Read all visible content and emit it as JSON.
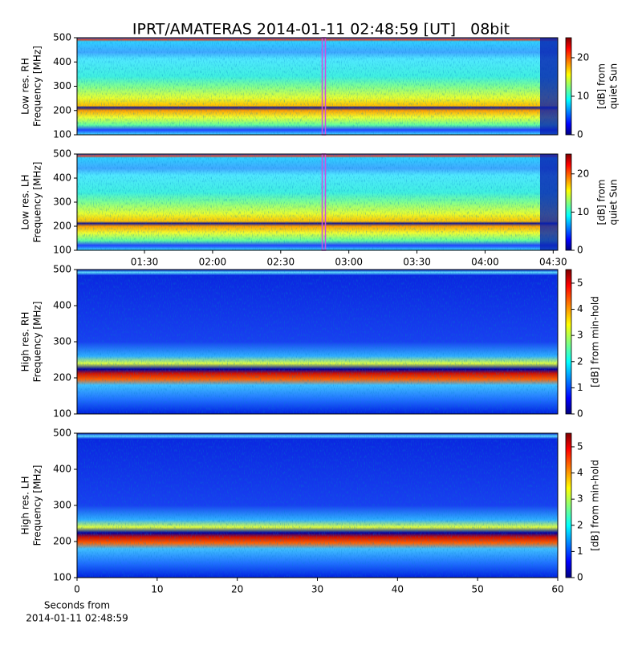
{
  "title": "IPRT/AMATERAS 2014-01-11 02:48:59 [UT]   08bit",
  "chart_data": [
    {
      "type": "heatmap",
      "ylabel": [
        "Low res. RH",
        "Frequency [MHz]"
      ],
      "xlim": [
        60.3,
        272
      ],
      "ylim": [
        100,
        500
      ],
      "yticks": [
        100,
        200,
        300,
        400,
        500
      ],
      "vline": 168.98,
      "vline_color": "#d050e0",
      "colormap": "jet",
      "clim": [
        0,
        25.2
      ],
      "cticks": [
        0,
        10,
        20
      ],
      "clabel": [
        "[dB] from",
        "quiet Sun"
      ]
    },
    {
      "type": "heatmap",
      "ylabel": [
        "Low res. LH",
        "Frequency [MHz]"
      ],
      "xlim": [
        60.3,
        272
      ],
      "ylim": [
        100,
        500
      ],
      "yticks": [
        100,
        200,
        300,
        400,
        500
      ],
      "xticks": [
        {
          "value": 90,
          "label": "01:30"
        },
        {
          "value": 120,
          "label": "02:00"
        },
        {
          "value": 150,
          "label": "02:30"
        },
        {
          "value": 180,
          "label": "03:00"
        },
        {
          "value": 210,
          "label": "03:30"
        },
        {
          "value": 240,
          "label": "04:00"
        },
        {
          "value": 270,
          "label": "04:30"
        }
      ],
      "vline": 168.98,
      "vline_color": "#d050e0",
      "colormap": "jet",
      "clim": [
        0,
        25.2
      ],
      "cticks": [
        0,
        10,
        20
      ],
      "clabel": [
        "[dB] from",
        "quiet Sun"
      ]
    },
    {
      "type": "heatmap",
      "ylabel": [
        "High res. RH",
        "Frequency [MHz]"
      ],
      "xlim": [
        0,
        60
      ],
      "ylim": [
        100,
        500
      ],
      "yticks": [
        100,
        200,
        300,
        400,
        500
      ],
      "colormap": "jet",
      "clim": [
        0,
        5.52
      ],
      "cticks": [
        0,
        1,
        2,
        3,
        4,
        5
      ],
      "clabel": [
        "[dB] from min-hold"
      ]
    },
    {
      "type": "heatmap",
      "ylabel": [
        "High res. LH",
        "Frequency [MHz]"
      ],
      "xlim": [
        0,
        60
      ],
      "ylim": [
        100,
        500
      ],
      "yticks": [
        100,
        200,
        300,
        400,
        500
      ],
      "xticks": [
        0,
        10,
        20,
        30,
        40,
        50,
        60
      ],
      "xlabel": [
        "Seconds from",
        "2014-01-11 02:48:59"
      ],
      "colormap": "jet",
      "clim": [
        0,
        5.52
      ],
      "cticks": [
        0,
        1,
        2,
        3,
        4,
        5
      ],
      "clabel": [
        "[dB] from min-hold"
      ]
    }
  ]
}
